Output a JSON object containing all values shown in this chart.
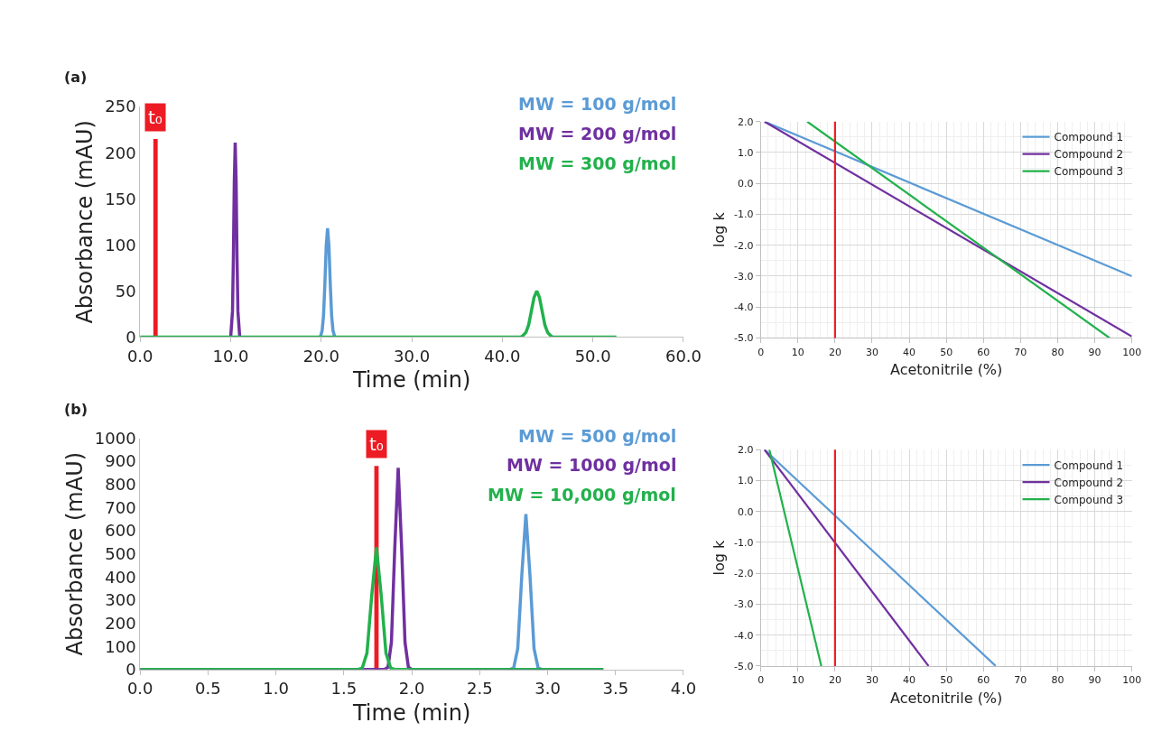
{
  "chart_data": [
    {
      "type": "line",
      "annotations": [
        "(a)"
      ],
      "xlabel": "Time (min)",
      "ylabel": "Absorbance (mAU)",
      "xlim": [
        0,
        60
      ],
      "ylim": [
        0,
        250
      ],
      "xticks": [
        {
          "value": 0,
          "label": "0.0"
        },
        {
          "value": 10,
          "label": "10.0"
        },
        {
          "value": 20,
          "label": "20.0"
        },
        {
          "value": 30,
          "label": "30.0"
        },
        {
          "value": 40,
          "label": "40.0"
        },
        {
          "value": 50,
          "label": "50.0"
        },
        {
          "value": 60,
          "label": "60.0"
        }
      ],
      "yticks": [
        0,
        50,
        100,
        150,
        200,
        250
      ],
      "legend": false,
      "series": [
        {
          "name": "t₀",
          "type": "bar",
          "color": "#ed1c24",
          "x": [
            1.7
          ],
          "values": [
            215
          ]
        },
        {
          "name": "MW = 100 g/mol",
          "color": "#5b9bd5",
          "x": [
            19.9,
            20.1,
            20.25,
            20.4,
            20.55,
            20.7,
            20.85,
            21.0,
            21.15,
            21.3,
            21.5
          ],
          "values": [
            0,
            7,
            23,
            57,
            99,
            118,
            99,
            57,
            23,
            7,
            0
          ]
        },
        {
          "name": "MW = 200 g/mol",
          "color": "#7030a0",
          "x": [
            10.0,
            10.2,
            10.3,
            10.4,
            10.5,
            10.6,
            10.7,
            10.8,
            11.0
          ],
          "values": [
            0,
            28,
            87,
            169,
            211,
            169,
            87,
            28,
            0
          ]
        },
        {
          "name": "MW = 300 g/mol",
          "color": "#22b14c",
          "x": [
            0,
            42.0,
            42.2,
            42.6,
            42.9,
            43.2,
            43.5,
            43.8,
            44.1,
            44.4,
            44.7,
            45.0,
            45.4,
            45.6,
            52.6
          ],
          "values": [
            0,
            0,
            1,
            5,
            13,
            28,
            43,
            50,
            43,
            28,
            13,
            5,
            1,
            0,
            0
          ]
        }
      ]
    },
    {
      "type": "line",
      "xlabel": "Acetonitrile (%)",
      "ylabel": "log k",
      "xlim": [
        0,
        100
      ],
      "ylim": [
        -5,
        2
      ],
      "xticks": [
        0,
        10,
        20,
        30,
        40,
        50,
        60,
        70,
        80,
        90,
        100
      ],
      "yticks": [
        {
          "value": 2,
          "label": "2.0"
        },
        {
          "value": 1,
          "label": "1.0"
        },
        {
          "value": 0,
          "label": "0.0"
        },
        {
          "value": -1,
          "label": "-1.0"
        },
        {
          "value": -2,
          "label": "-2.0"
        },
        {
          "value": -3,
          "label": "-3.0"
        },
        {
          "value": -4,
          "label": "-4.0"
        },
        {
          "value": -5,
          "label": "-5.0"
        }
      ],
      "grid": true,
      "legend": "top right",
      "marker": "none",
      "ref_lines": [
        {
          "axis": "x",
          "value": 20,
          "color": "#ed1c24"
        }
      ],
      "series": [
        {
          "name": "Compound 1",
          "color": "#5b9bd5",
          "x": [
            1,
            100
          ],
          "values": [
            2.0,
            -3.0
          ]
        },
        {
          "name": "Compound 2",
          "color": "#7030a0",
          "x": [
            1,
            100
          ],
          "values": [
            2.0,
            -4.95
          ]
        },
        {
          "name": "Compound 3",
          "color": "#22b14c",
          "x": [
            12.5,
            94
          ],
          "values": [
            2.0,
            -5.0
          ]
        }
      ]
    },
    {
      "type": "line",
      "annotations": [
        "(b)"
      ],
      "xlabel": "Time (min)",
      "ylabel": "Absorbance (mAU)",
      "xlim": [
        0,
        4
      ],
      "ylim": [
        0,
        1000
      ],
      "xticks": [
        {
          "value": 0,
          "label": "0.0"
        },
        {
          "value": 0.5,
          "label": "0.5"
        },
        {
          "value": 1,
          "label": "1.0"
        },
        {
          "value": 1.5,
          "label": "1.5"
        },
        {
          "value": 2,
          "label": "2.0"
        },
        {
          "value": 2.5,
          "label": "2.5"
        },
        {
          "value": 3,
          "label": "3.0"
        },
        {
          "value": 3.5,
          "label": "3.5"
        },
        {
          "value": 4,
          "label": "4.0"
        }
      ],
      "yticks": [
        0,
        100,
        200,
        300,
        400,
        500,
        600,
        700,
        800,
        900,
        1000
      ],
      "legend": false,
      "series": [
        {
          "name": "t₀",
          "type": "bar",
          "color": "#ed1c24",
          "x": [
            1.74
          ],
          "values": [
            880
          ]
        },
        {
          "name": "MW = 500 g/mol",
          "color": "#5b9bd5",
          "x": [
            2.72,
            2.75,
            2.78,
            2.81,
            2.84,
            2.87,
            2.9,
            2.93,
            2.96
          ],
          "values": [
            0,
            7,
            91,
            408,
            672,
            408,
            91,
            7,
            0
          ]
        },
        {
          "name": "MW = 1000 g/mol",
          "color": "#7030a0",
          "x": [
            0,
            1.8,
            1.825,
            1.85,
            1.875,
            1.9,
            1.925,
            1.95,
            1.975,
            2.0,
            3.41
          ],
          "values": [
            0,
            0,
            10,
            118,
            529,
            872,
            529,
            118,
            10,
            0,
            0
          ]
        },
        {
          "name": "MW = 10,000 g/mol",
          "color": "#22b14c",
          "x": [
            0,
            1.6,
            1.635,
            1.67,
            1.705,
            1.74,
            1.775,
            1.81,
            1.845,
            1.88,
            3.41
          ],
          "values": [
            0,
            0,
            6,
            71,
            320,
            528,
            320,
            71,
            6,
            0,
            0
          ]
        }
      ]
    },
    {
      "type": "line",
      "xlabel": "Acetonitrile (%)",
      "ylabel": "log k",
      "xlim": [
        0,
        100
      ],
      "ylim": [
        -5,
        2
      ],
      "xticks": [
        0,
        10,
        20,
        30,
        40,
        50,
        60,
        70,
        80,
        90,
        100
      ],
      "yticks": [
        {
          "value": 2,
          "label": "2.0"
        },
        {
          "value": 1,
          "label": "1.0"
        },
        {
          "value": 0,
          "label": "0.0"
        },
        {
          "value": -1,
          "label": "-1.0"
        },
        {
          "value": -2,
          "label": "-2.0"
        },
        {
          "value": -3,
          "label": "-3.0"
        },
        {
          "value": -4,
          "label": "-4.0"
        },
        {
          "value": -5,
          "label": "-5.0"
        }
      ],
      "grid": true,
      "legend": "top right",
      "marker": "none",
      "ref_lines": [
        {
          "axis": "x",
          "value": 20,
          "color": "#ed1c24"
        }
      ],
      "series": [
        {
          "name": "Compound 1",
          "color": "#5b9bd5",
          "x": [
            1,
            63.3
          ],
          "values": [
            2.0,
            -5.0
          ]
        },
        {
          "name": "Compound 2",
          "color": "#7030a0",
          "x": [
            1,
            45.2
          ],
          "values": [
            2.0,
            -5.0
          ]
        },
        {
          "name": "Compound 3",
          "color": "#22b14c",
          "x": [
            2.3,
            16.3
          ],
          "values": [
            2.0,
            -5.0
          ]
        }
      ]
    }
  ]
}
